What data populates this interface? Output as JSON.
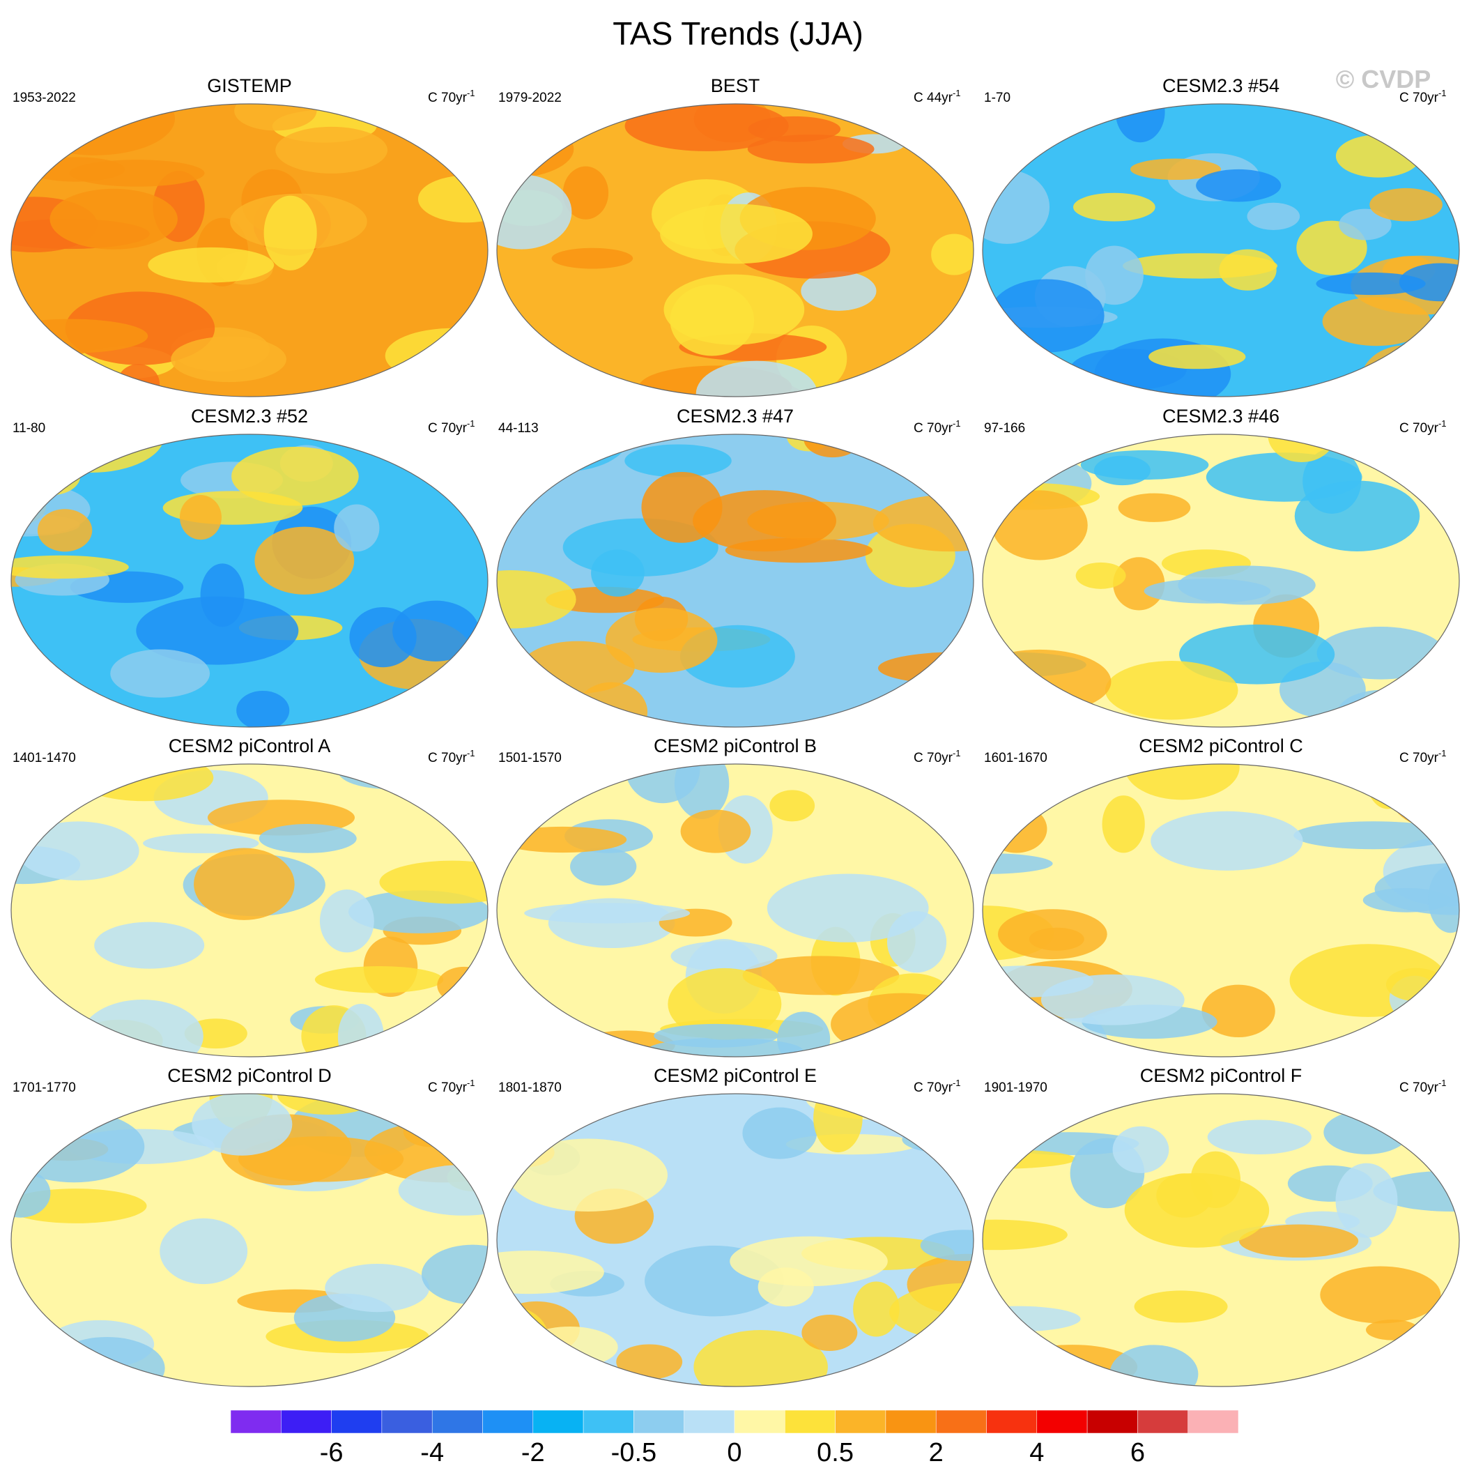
{
  "title": "TAS Trends (JJA)",
  "watermark": "© CVDP",
  "panels": [
    {
      "title": "GISTEMP",
      "period": "1953-2022",
      "units": "C 70yr",
      "units_sup": "-1"
    },
    {
      "title": "BEST",
      "period": "1979-2022",
      "units": "C 44yr",
      "units_sup": "-1"
    },
    {
      "title": "CESM2.3 #54",
      "period": "1-70",
      "units": "C 70yr",
      "units_sup": "-1"
    },
    {
      "title": "CESM2.3 #52",
      "period": "11-80",
      "units": "C 70yr",
      "units_sup": "-1"
    },
    {
      "title": "CESM2.3 #47",
      "period": "44-113",
      "units": "C 70yr",
      "units_sup": "-1"
    },
    {
      "title": "CESM2.3 #46",
      "period": "97-166",
      "units": "C 70yr",
      "units_sup": "-1"
    },
    {
      "title": "CESM2 piControl A",
      "period": "1401-1470",
      "units": "C 70yr",
      "units_sup": "-1"
    },
    {
      "title": "CESM2 piControl B",
      "period": "1501-1570",
      "units": "C 70yr",
      "units_sup": "-1"
    },
    {
      "title": "CESM2 piControl C",
      "period": "1601-1670",
      "units": "C 70yr",
      "units_sup": "-1"
    },
    {
      "title": "CESM2 piControl D",
      "period": "1701-1770",
      "units": "C 70yr",
      "units_sup": "-1"
    },
    {
      "title": "CESM2 piControl E",
      "period": "1801-1870",
      "units": "C 70yr",
      "units_sup": "-1"
    },
    {
      "title": "CESM2 piControl F",
      "period": "1901-1970",
      "units": "C 70yr",
      "units_sup": "-1"
    }
  ],
  "colorbar": {
    "colors": [
      "#7f2cf0",
      "#3d1ef5",
      "#1f3ef0",
      "#3a5fe0",
      "#2f76e6",
      "#1e90f5",
      "#08b2f3",
      "#3ec1f5",
      "#8dcdef",
      "#b9e0f6",
      "#fff7a6",
      "#fde23a",
      "#fbb428",
      "#f99412",
      "#f87017",
      "#f7320f",
      "#f30000",
      "#c80000",
      "#d63c3c",
      "#fbb1b5"
    ],
    "labels": [
      -6,
      -4,
      -2,
      -0.5,
      0,
      0.5,
      2,
      4,
      6
    ]
  }
}
